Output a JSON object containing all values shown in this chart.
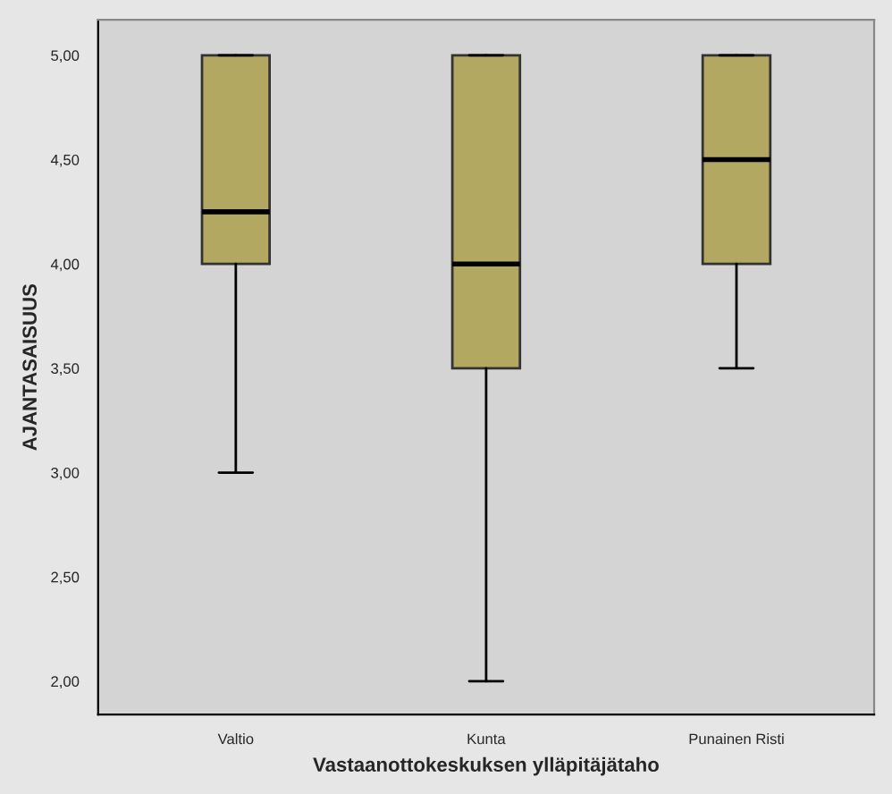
{
  "chart_data": {
    "type": "box",
    "xlabel": "Vastaanottokeskuksen ylläpitäjätaho",
    "ylabel": "AJANTASAISUUS",
    "categories": [
      "Valtio",
      "Kunta",
      "Punainen Risti"
    ],
    "boxes": [
      {
        "low": 3.0,
        "q1": 4.0,
        "median": 4.25,
        "q3": 5.0,
        "high": 5.0
      },
      {
        "low": 2.0,
        "q1": 3.5,
        "median": 4.0,
        "q3": 5.0,
        "high": 5.0
      },
      {
        "low": 3.5,
        "q1": 4.0,
        "median": 4.5,
        "q3": 5.0,
        "high": 5.0
      }
    ],
    "color": "#b3a862",
    "ylim": [
      1.84,
      5.17
    ],
    "yticks": [
      {
        "value": 2.0,
        "label": "2,00"
      },
      {
        "value": 2.5,
        "label": "2,50"
      },
      {
        "value": 3.0,
        "label": "3,00"
      },
      {
        "value": 3.5,
        "label": "3,50"
      },
      {
        "value": 4.0,
        "label": "4,00"
      },
      {
        "value": 4.5,
        "label": "4,50"
      },
      {
        "value": 5.0,
        "label": "5,00"
      }
    ],
    "grid": false
  }
}
